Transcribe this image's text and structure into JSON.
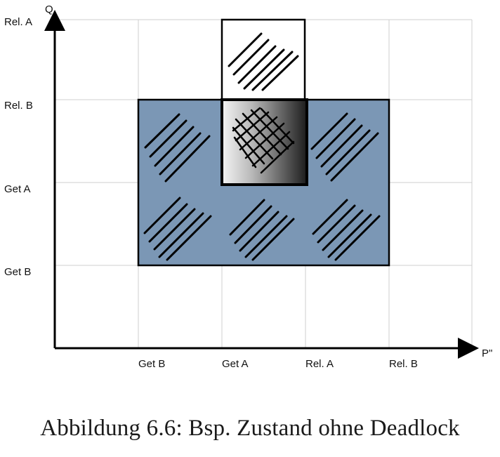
{
  "axes": {
    "x_axis_name": "P\"",
    "y_axis_name": "Q",
    "x_ticks": [
      "Get B",
      "Get A",
      "Rel. A",
      "Rel. B"
    ],
    "y_ticks": [
      "Rel. A",
      "Rel. B",
      "Get A",
      "Get B"
    ]
  },
  "regions": {
    "outer_block_color": "#7b97b5",
    "overlap_label": "",
    "upper_box_fill": "#ffffff"
  },
  "caption": {
    "text": "Abbildung 6.6: Bsp. Zustand ohne Deadlock"
  }
}
